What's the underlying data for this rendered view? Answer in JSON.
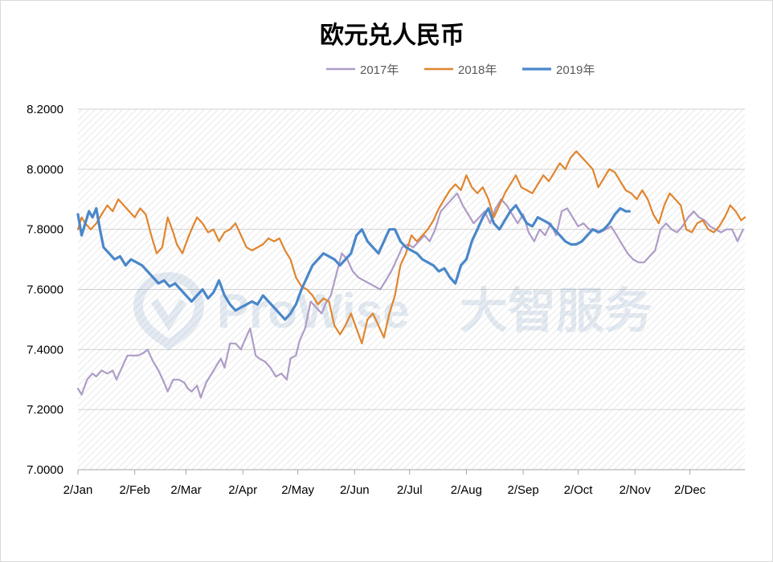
{
  "chart_data": {
    "type": "line",
    "title": "欧元兑人民币",
    "xlabel": "",
    "ylabel": "",
    "ylim": [
      7.0,
      8.2
    ],
    "yticks": [
      "8.2000",
      "8.0000",
      "7.8000",
      "7.6000",
      "7.4000",
      "7.2000",
      "7.0000"
    ],
    "yticks_values": [
      8.2,
      8.0,
      7.8,
      7.6,
      7.4,
      7.2,
      7.0
    ],
    "xlim": [
      0,
      364
    ],
    "xticks": [
      "2/Jan",
      "2/Feb",
      "2/Mar",
      "2/Apr",
      "2/May",
      "2/Jun",
      "2/Jul",
      "2/Aug",
      "2/Sep",
      "2/Oct",
      "2/Nov",
      "2/Dec"
    ],
    "xticks_values": [
      0,
      31,
      59,
      90,
      120,
      151,
      181,
      212,
      243,
      273,
      304,
      334
    ],
    "legend_position": "top-center",
    "grid": true,
    "background_pattern": "diagonal-hatch",
    "watermark": "ProWise大智服务",
    "series": [
      {
        "name": "2017年",
        "color": "#AE9CC7",
        "x": [
          0,
          2,
          5,
          8,
          10,
          13,
          16,
          19,
          21,
          24,
          27,
          30,
          33,
          36,
          38,
          41,
          44,
          47,
          49,
          52,
          55,
          58,
          60,
          62,
          65,
          67,
          70,
          72,
          75,
          78,
          80,
          83,
          86,
          89,
          91,
          94,
          97,
          99,
          102,
          105,
          108,
          111,
          114,
          116,
          119,
          121,
          124,
          127,
          130,
          133,
          135,
          138,
          141,
          144,
          147,
          150,
          153,
          156,
          159,
          162,
          165,
          168,
          171,
          174,
          177,
          180,
          183,
          186,
          189,
          192,
          195,
          198,
          201,
          204,
          207,
          210,
          213,
          216,
          219,
          222,
          225,
          228,
          231,
          234,
          237,
          240,
          243,
          246,
          249,
          252,
          255,
          258,
          261,
          264,
          267,
          270,
          273,
          276,
          279,
          282,
          285,
          288,
          291,
          294,
          297,
          300,
          303,
          306,
          309,
          312,
          315,
          318,
          321,
          324,
          327,
          330,
          333,
          336,
          339,
          342,
          345,
          348,
          351,
          354,
          357,
          360,
          363
        ],
        "values": [
          7.27,
          7.25,
          7.3,
          7.32,
          7.31,
          7.33,
          7.32,
          7.33,
          7.3,
          7.34,
          7.38,
          7.38,
          7.38,
          7.39,
          7.4,
          7.36,
          7.33,
          7.29,
          7.26,
          7.3,
          7.3,
          7.29,
          7.27,
          7.26,
          7.28,
          7.24,
          7.29,
          7.31,
          7.34,
          7.37,
          7.34,
          7.42,
          7.42,
          7.4,
          7.43,
          7.47,
          7.38,
          7.37,
          7.36,
          7.34,
          7.31,
          7.32,
          7.3,
          7.37,
          7.38,
          7.43,
          7.47,
          7.56,
          7.54,
          7.52,
          7.55,
          7.58,
          7.65,
          7.72,
          7.7,
          7.66,
          7.64,
          7.63,
          7.62,
          7.61,
          7.6,
          7.63,
          7.66,
          7.7,
          7.74,
          7.75,
          7.74,
          7.76,
          7.78,
          7.76,
          7.8,
          7.86,
          7.88,
          7.9,
          7.92,
          7.88,
          7.85,
          7.82,
          7.84,
          7.86,
          7.82,
          7.87,
          7.9,
          7.88,
          7.85,
          7.82,
          7.85,
          7.79,
          7.76,
          7.8,
          7.78,
          7.82,
          7.78,
          7.86,
          7.87,
          7.84,
          7.81,
          7.82,
          7.8,
          7.8,
          7.79,
          7.8,
          7.81,
          7.78,
          7.75,
          7.72,
          7.7,
          7.69,
          7.69,
          7.71,
          7.73,
          7.8,
          7.82,
          7.8,
          7.79,
          7.81,
          7.84,
          7.86,
          7.84,
          7.83,
          7.81,
          7.8,
          7.79,
          7.8,
          7.8,
          7.76,
          7.8
        ]
      },
      {
        "name": "2018年",
        "color": "#E0852E",
        "x": [
          0,
          2,
          4,
          7,
          10,
          13,
          16,
          19,
          22,
          25,
          28,
          31,
          34,
          37,
          40,
          43,
          46,
          49,
          52,
          54,
          57,
          60,
          62,
          65,
          68,
          71,
          74,
          77,
          80,
          83,
          86,
          89,
          92,
          95,
          98,
          101,
          104,
          107,
          110,
          113,
          116,
          119,
          122,
          125,
          128,
          131,
          134,
          137,
          140,
          143,
          146,
          149,
          152,
          155,
          158,
          161,
          164,
          167,
          170,
          173,
          176,
          179,
          182,
          185,
          188,
          191,
          194,
          197,
          200,
          203,
          206,
          209,
          212,
          215,
          218,
          221,
          224,
          227,
          230,
          233,
          236,
          239,
          242,
          245,
          248,
          251,
          254,
          257,
          260,
          263,
          266,
          269,
          272,
          275,
          278,
          281,
          284,
          287,
          290,
          293,
          296,
          299,
          302,
          305,
          308,
          311,
          314,
          317,
          320,
          323,
          326,
          329,
          332,
          335,
          338,
          341,
          344,
          347,
          350,
          353,
          356,
          359,
          362,
          364
        ],
        "values": [
          7.8,
          7.84,
          7.82,
          7.8,
          7.82,
          7.85,
          7.88,
          7.86,
          7.9,
          7.88,
          7.86,
          7.84,
          7.87,
          7.85,
          7.78,
          7.72,
          7.74,
          7.84,
          7.79,
          7.75,
          7.72,
          7.77,
          7.8,
          7.84,
          7.82,
          7.79,
          7.8,
          7.76,
          7.79,
          7.8,
          7.82,
          7.78,
          7.74,
          7.73,
          7.74,
          7.75,
          7.77,
          7.76,
          7.77,
          7.73,
          7.7,
          7.64,
          7.61,
          7.6,
          7.58,
          7.55,
          7.57,
          7.56,
          7.48,
          7.45,
          7.48,
          7.52,
          7.47,
          7.42,
          7.5,
          7.52,
          7.48,
          7.44,
          7.52,
          7.58,
          7.68,
          7.72,
          7.78,
          7.76,
          7.78,
          7.8,
          7.83,
          7.87,
          7.9,
          7.93,
          7.95,
          7.93,
          7.98,
          7.94,
          7.92,
          7.94,
          7.9,
          7.84,
          7.88,
          7.92,
          7.95,
          7.98,
          7.94,
          7.93,
          7.92,
          7.95,
          7.98,
          7.96,
          7.99,
          8.02,
          8.0,
          8.04,
          8.06,
          8.04,
          8.02,
          8.0,
          7.94,
          7.97,
          8.0,
          7.99,
          7.96,
          7.93,
          7.92,
          7.9,
          7.93,
          7.9,
          7.85,
          7.82,
          7.88,
          7.92,
          7.9,
          7.88,
          7.8,
          7.79,
          7.82,
          7.83,
          7.8,
          7.79,
          7.81,
          7.84,
          7.88,
          7.86,
          7.83,
          7.84
        ]
      },
      {
        "name": "2019年",
        "color": "#4A87C9",
        "x": [
          0,
          2,
          4,
          6,
          8,
          10,
          12,
          14,
          17,
          20,
          23,
          26,
          29,
          32,
          35,
          38,
          41,
          44,
          47,
          50,
          53,
          56,
          59,
          62,
          65,
          68,
          71,
          74,
          77,
          80,
          83,
          86,
          89,
          92,
          95,
          98,
          101,
          104,
          107,
          110,
          113,
          116,
          119,
          122,
          125,
          128,
          131,
          134,
          137,
          140,
          143,
          146,
          149,
          152,
          155,
          158,
          161,
          164,
          167,
          170,
          173,
          176,
          179,
          182,
          185,
          188,
          191,
          194,
          197,
          200,
          203,
          206,
          209,
          212,
          215,
          218,
          221,
          224,
          227,
          230,
          233,
          236,
          239,
          242,
          245,
          248,
          251,
          254,
          257,
          260,
          263,
          266,
          269,
          272,
          275,
          278,
          281,
          284,
          287,
          290,
          293,
          296,
          299,
          301
        ],
        "values": [
          7.85,
          7.78,
          7.82,
          7.86,
          7.84,
          7.87,
          7.8,
          7.74,
          7.72,
          7.7,
          7.71,
          7.68,
          7.7,
          7.69,
          7.68,
          7.66,
          7.64,
          7.62,
          7.63,
          7.61,
          7.62,
          7.6,
          7.58,
          7.56,
          7.58,
          7.6,
          7.57,
          7.59,
          7.63,
          7.58,
          7.55,
          7.53,
          7.54,
          7.55,
          7.56,
          7.55,
          7.58,
          7.56,
          7.54,
          7.52,
          7.5,
          7.52,
          7.55,
          7.6,
          7.64,
          7.68,
          7.7,
          7.72,
          7.71,
          7.7,
          7.68,
          7.7,
          7.72,
          7.78,
          7.8,
          7.76,
          7.74,
          7.72,
          7.76,
          7.8,
          7.8,
          7.76,
          7.74,
          7.73,
          7.72,
          7.7,
          7.69,
          7.68,
          7.66,
          7.67,
          7.64,
          7.62,
          7.68,
          7.7,
          7.76,
          7.8,
          7.84,
          7.87,
          7.82,
          7.8,
          7.83,
          7.86,
          7.88,
          7.85,
          7.82,
          7.81,
          7.84,
          7.83,
          7.82,
          7.8,
          7.78,
          7.76,
          7.75,
          7.75,
          7.76,
          7.78,
          7.8,
          7.79,
          7.8,
          7.82,
          7.85,
          7.87,
          7.86,
          7.86
        ]
      }
    ]
  }
}
